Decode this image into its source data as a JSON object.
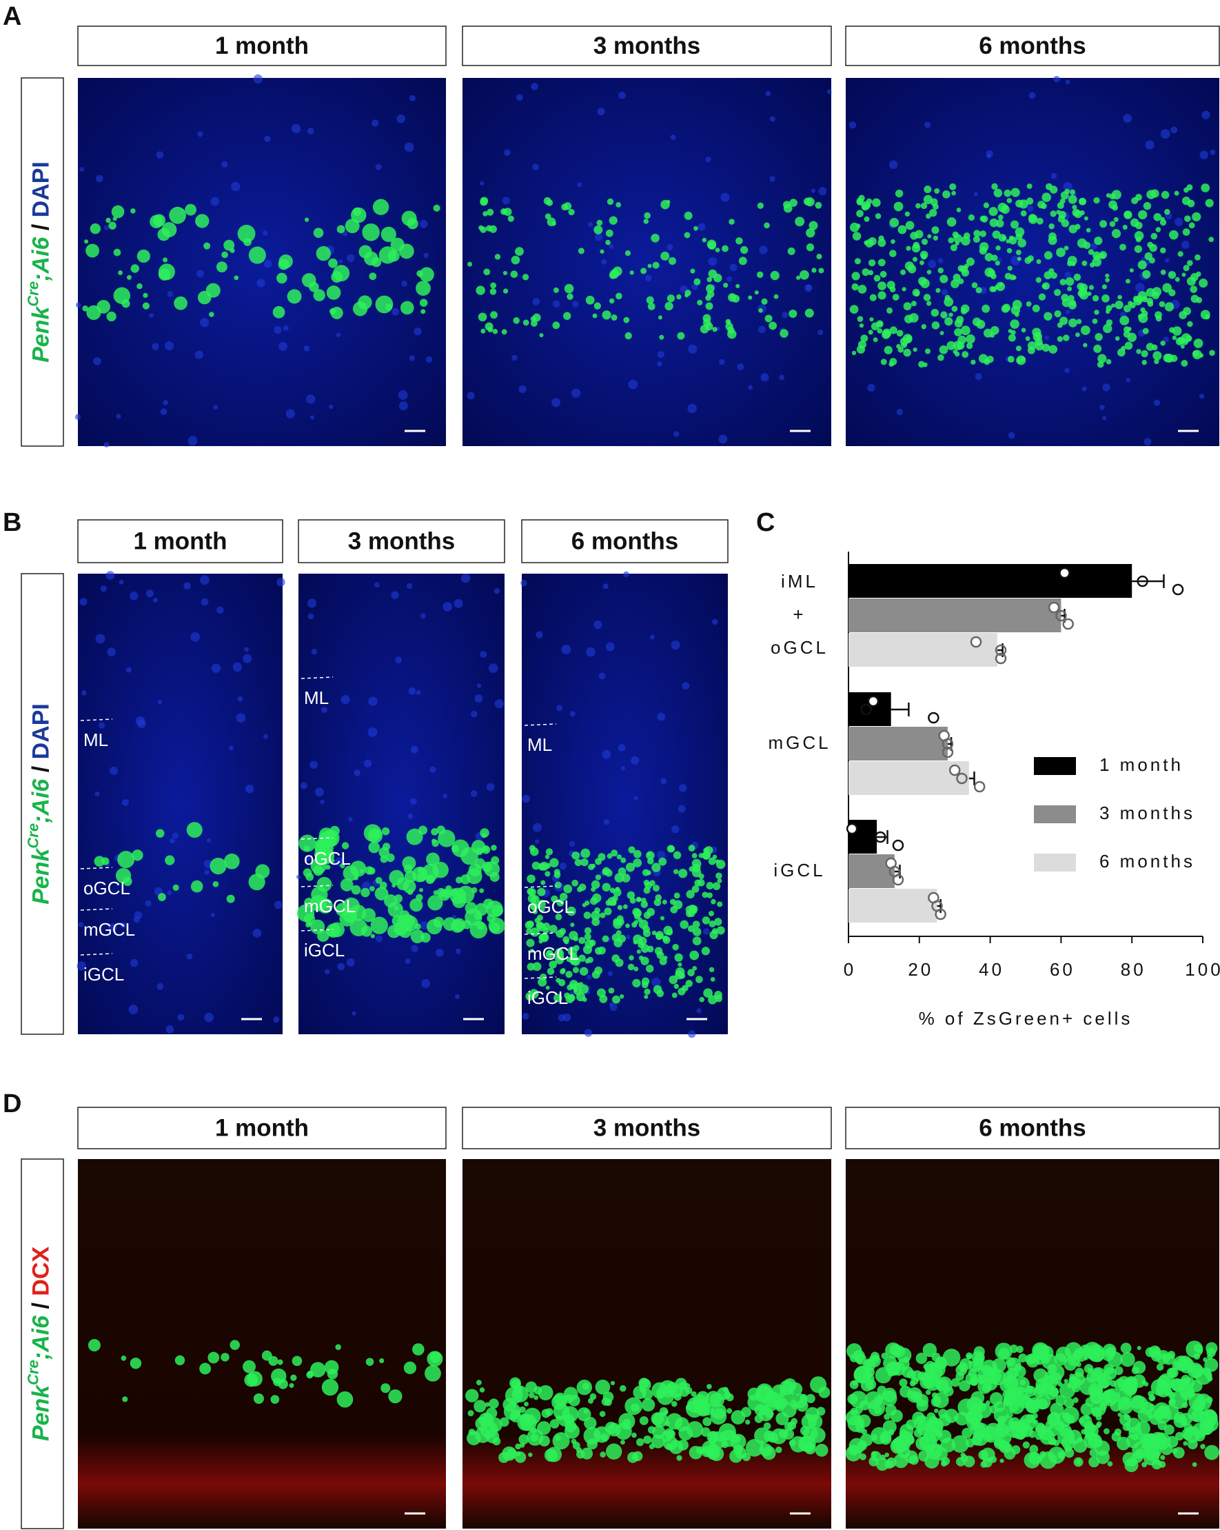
{
  "figure": {
    "panels": [
      {
        "letter": "A",
        "headers": [
          "1 month",
          "3 months",
          "6 months"
        ],
        "side_label": {
          "gene": "Penk",
          "superscript": "Cre",
          "allele": ";Ai6",
          "separator": " / ",
          "stain": "DAPI"
        }
      },
      {
        "letter": "B",
        "headers": [
          "1 month",
          "3 months",
          "6 months"
        ],
        "side_label": {
          "gene": "Penk",
          "superscript": "Cre",
          "allele": ";Ai6",
          "separator": " / ",
          "stain": "DAPI"
        },
        "region_labels": [
          [
            "ML",
            "oGCL",
            "mGCL",
            "iGCL"
          ],
          [
            "ML",
            "oGCL",
            "mGCL",
            "iGCL"
          ],
          [
            "ML",
            "oGCL",
            "mGCL",
            "iGCL"
          ]
        ]
      },
      {
        "letter": "C"
      },
      {
        "letter": "D",
        "headers": [
          "1 month",
          "3 months",
          "6 months"
        ],
        "side_label": {
          "gene": "Penk",
          "superscript": "Cre",
          "allele": ";Ai6",
          "separator": " / ",
          "stain": "DCX"
        }
      }
    ]
  },
  "chart_data": {
    "type": "hbar",
    "x_label": "% of ZsGreen+ cells",
    "categories": [
      "iML + oGCL",
      "mGCL",
      "iGCL"
    ],
    "series": [
      {
        "name": "1 month",
        "color": "#000000",
        "values": [
          80,
          12,
          8
        ],
        "errors": [
          9,
          5,
          3
        ],
        "points": [
          [
            61,
            83,
            93
          ],
          [
            7,
            5,
            24
          ],
          [
            1,
            9,
            14
          ]
        ]
      },
      {
        "name": "3 months",
        "color": "#8c8c8c",
        "values": [
          60,
          28,
          13
        ],
        "errors": [
          1,
          1,
          1.5
        ],
        "points": [
          [
            58,
            60,
            62
          ],
          [
            27,
            28,
            28
          ],
          [
            12,
            13,
            14
          ]
        ]
      },
      {
        "name": "6 months",
        "color": "#dcdcdc",
        "values": [
          42,
          34,
          25
        ],
        "errors": [
          1.5,
          1.5,
          1
        ],
        "points": [
          [
            36,
            43,
            43
          ],
          [
            30,
            32,
            37
          ],
          [
            24,
            25,
            26
          ]
        ]
      }
    ],
    "xlim": [
      0,
      100
    ],
    "xticks": [
      0,
      20,
      40,
      60,
      80,
      100
    ]
  }
}
